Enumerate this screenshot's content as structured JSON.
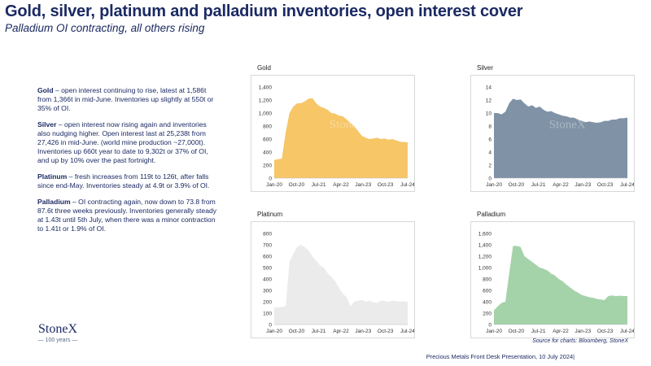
{
  "title": "Gold, silver, platinum and palladium inventories, open interest cover",
  "subtitle": "Palladium OI contracting, all others rising",
  "bullets": [
    {
      "head": "Gold",
      "text": " – open interest continuing to rise, latest at 1,586t from 1,366t in mid-June.  Inventories up slightly at 550t or 35% of OI."
    },
    {
      "head": "Silver",
      "text": " – open interest now rising again and inventories also nudging higher.  Open interest last at 25,238t from 27,426 in mid-June. (world mine production ~27,000t).  Inventories up 660t year to date to 9,302t or 37% of OI, and up by 10% over the past fortnight."
    },
    {
      "head": "Platinum",
      "text": " – fresh increases from 119t to 126t, after falls since end-May.  Inventories steady at 4.9t or 3.9% of OI."
    },
    {
      "head": "Palladium",
      "text": " – OI contracting again, now down to 73.8 from 87.6t three weeks previously.  Inventories generally steady at 1.43t until 5th July, when there was a minor contraction to 1.41t or 1.9% of OI."
    }
  ],
  "logo": {
    "word": "StoneX",
    "years": "— 100 years —"
  },
  "source": "Source for charts: Bloomberg, StoneX",
  "footer": "Precious Metals Front Desk Presentation, 10 July 2024|",
  "watermark": "StoneX",
  "chart_data": [
    {
      "type": "area",
      "title": "Gold",
      "color": "#f6c667",
      "x_ticks": [
        "Jan-20",
        "Oct-20",
        "Jul-21",
        "Apr-22",
        "Jan-23",
        "Oct-23",
        "Jul-24"
      ],
      "ylim": [
        0,
        1400
      ],
      "y_ticks": [
        "0",
        "200",
        "400",
        "600",
        "800",
        "1,000",
        "1,200",
        "1,400"
      ],
      "series": [
        {
          "values": [
            280,
            290,
            300,
            700,
            1000,
            1100,
            1150,
            1150,
            1180,
            1220,
            1230,
            1150,
            1100,
            1080,
            1050,
            1000,
            990,
            960,
            950,
            900,
            850,
            800,
            720,
            650,
            620,
            600,
            610,
            620,
            600,
            610,
            590,
            600,
            580,
            560,
            555,
            550
          ]
        }
      ]
    },
    {
      "type": "area",
      "title": "Silver",
      "color": "#7f92a6",
      "x_ticks": [
        "Jan-20",
        "Oct-20",
        "Jul-21",
        "Apr-22",
        "Jan-23",
        "Oct-23",
        "Jul-24"
      ],
      "ylim": [
        0,
        14
      ],
      "y_ticks": [
        "0",
        "2",
        "4",
        "6",
        "8",
        "10",
        "12",
        "14"
      ],
      "series": [
        {
          "values": [
            10.0,
            10.0,
            9.8,
            10.2,
            11.5,
            12.2,
            12.0,
            12.1,
            11.5,
            11.0,
            11.2,
            10.8,
            11.0,
            10.5,
            10.2,
            10.3,
            10.0,
            9.8,
            9.6,
            9.5,
            9.3,
            9.3,
            9.0,
            8.8,
            8.6,
            8.7,
            8.6,
            8.5,
            8.6,
            8.8,
            8.8,
            9.0,
            9.0,
            9.2,
            9.2,
            9.3
          ]
        }
      ]
    },
    {
      "type": "area",
      "title": "Platinum",
      "color": "#ebebeb",
      "x_ticks": [
        "Jan-20",
        "Oct-20",
        "Jul-21",
        "Apr-22",
        "Jan-23",
        "Oct-23",
        "Jul-24"
      ],
      "ylim": [
        0,
        800
      ],
      "y_ticks": [
        "0",
        "100",
        "200",
        "300",
        "400",
        "500",
        "600",
        "700",
        "800"
      ],
      "series": [
        {
          "values": [
            150,
            150,
            155,
            160,
            550,
            620,
            680,
            700,
            680,
            650,
            600,
            560,
            520,
            500,
            450,
            420,
            380,
            320,
            270,
            240,
            160,
            200,
            210,
            215,
            200,
            210,
            195,
            190,
            210,
            205,
            200,
            210,
            205,
            200,
            205,
            200
          ]
        }
      ]
    },
    {
      "type": "area",
      "title": "Palladium",
      "color": "#a5d3a9",
      "x_ticks": [
        "Jan-20",
        "Oct-20",
        "Jul-21",
        "Apr-22",
        "Jan-23",
        "Oct-23",
        "Jul-24"
      ],
      "ylim": [
        0,
        1600
      ],
      "y_ticks": [
        "0",
        "200",
        "400",
        "600",
        "800",
        "1,000",
        "1,200",
        "1,400",
        "1,600"
      ],
      "series": [
        {
          "values": [
            250,
            320,
            380,
            400,
            900,
            1380,
            1380,
            1360,
            1200,
            1150,
            1100,
            1050,
            1000,
            980,
            950,
            900,
            860,
            800,
            760,
            700,
            650,
            600,
            560,
            520,
            500,
            480,
            470,
            450,
            440,
            430,
            500,
            510,
            500,
            505,
            500,
            500
          ]
        }
      ]
    }
  ]
}
